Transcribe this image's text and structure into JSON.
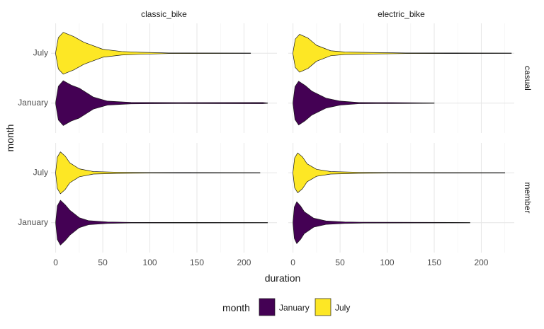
{
  "chart_data": {
    "type": "violin",
    "title": "",
    "xlabel": "duration",
    "ylabel": "month",
    "xlim": [
      -5,
      235
    ],
    "x_ticks": [
      0,
      50,
      100,
      150,
      200
    ],
    "y_categories": [
      "January",
      "July"
    ],
    "facet_columns": [
      "classic_bike",
      "electric_bike"
    ],
    "facet_rows": [
      "casual",
      "member"
    ],
    "grid": true,
    "legend": {
      "title": "month",
      "position": "bottom",
      "entries": [
        {
          "label": "January",
          "color": "#440154"
        },
        {
          "label": "July",
          "color": "#FDE725"
        }
      ]
    },
    "panels": [
      {
        "column": "classic_bike",
        "row": "casual",
        "violins": [
          {
            "month": "July",
            "min": 0,
            "peak": 8,
            "max": 207,
            "max_half_width": 0.42,
            "tail": [
              [
                30,
                0.22
              ],
              [
                50,
                0.08
              ],
              [
                70,
                0.035
              ],
              [
                90,
                0.02
              ],
              [
                120,
                0.006
              ]
            ]
          },
          {
            "month": "January",
            "min": 0,
            "peak": 8,
            "max": 225,
            "max_half_width": 0.45,
            "tail": [
              [
                25,
                0.3
              ],
              [
                40,
                0.12
              ],
              [
                55,
                0.04
              ],
              [
                80,
                0.015
              ],
              [
                100,
                0.012
              ],
              [
                130,
                0.01
              ],
              [
                220,
                0.012
              ]
            ]
          }
        ]
      },
      {
        "column": "electric_bike",
        "row": "casual",
        "violins": [
          {
            "month": "July",
            "min": 0,
            "peak": 7,
            "max": 232,
            "max_half_width": 0.38,
            "tail": [
              [
                25,
                0.16
              ],
              [
                40,
                0.05
              ],
              [
                55,
                0.025
              ],
              [
                85,
                0.015
              ],
              [
                120,
                0.006
              ]
            ]
          },
          {
            "month": "January",
            "min": 0,
            "peak": 6,
            "max": 150,
            "max_half_width": 0.44,
            "tail": [
              [
                20,
                0.24
              ],
              [
                35,
                0.1
              ],
              [
                50,
                0.04
              ],
              [
                70,
                0.012
              ],
              [
                90,
                0.01
              ],
              [
                105,
                0.01
              ]
            ]
          }
        ]
      },
      {
        "column": "classic_bike",
        "row": "member",
        "violins": [
          {
            "month": "July",
            "min": 0,
            "peak": 5,
            "max": 217,
            "max_half_width": 0.42,
            "tail": [
              [
                15,
                0.2
              ],
              [
                25,
                0.08
              ],
              [
                40,
                0.025
              ],
              [
                65,
                0.012
              ],
              [
                100,
                0.006
              ]
            ]
          },
          {
            "month": "January",
            "min": 0,
            "peak": 5,
            "max": 225,
            "max_half_width": 0.45,
            "tail": [
              [
                15,
                0.25
              ],
              [
                25,
                0.1
              ],
              [
                35,
                0.04
              ],
              [
                55,
                0.015
              ],
              [
                80,
                0.006
              ]
            ]
          }
        ]
      },
      {
        "column": "electric_bike",
        "row": "member",
        "violins": [
          {
            "month": "July",
            "min": 0,
            "peak": 5,
            "max": 225,
            "max_half_width": 0.4,
            "tail": [
              [
                15,
                0.18
              ],
              [
                25,
                0.07
              ],
              [
                40,
                0.025
              ],
              [
                70,
                0.01
              ],
              [
                100,
                0.006
              ]
            ]
          },
          {
            "month": "January",
            "min": 0,
            "peak": 4,
            "max": 188,
            "max_half_width": 0.42,
            "tail": [
              [
                12,
                0.22
              ],
              [
                22,
                0.09
              ],
              [
                35,
                0.035
              ],
              [
                55,
                0.015
              ],
              [
                75,
                0.008
              ]
            ]
          }
        ]
      }
    ]
  }
}
